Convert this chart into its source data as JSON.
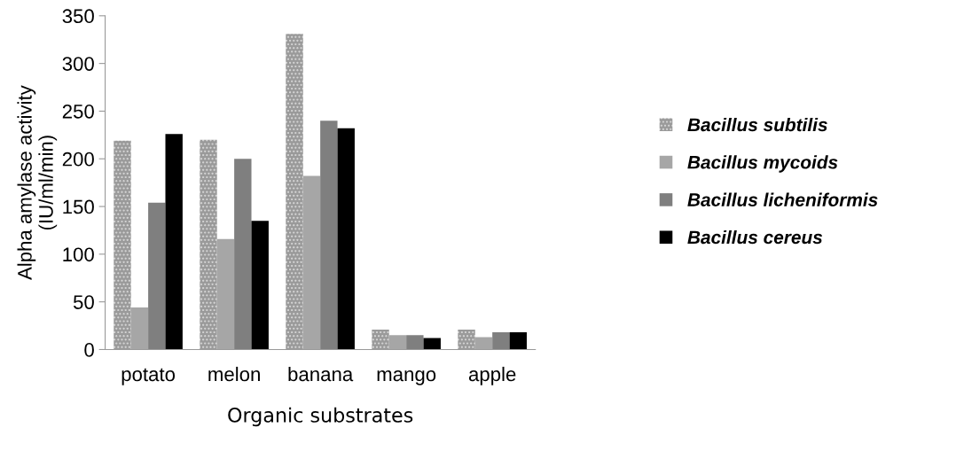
{
  "chart_data": {
    "type": "bar",
    "xlabel": "Organic substrates",
    "ylabel": "Alpha amylase activity\n(IU/ml/min)",
    "categories": [
      "potato",
      "melon",
      "banana",
      "mango",
      "apple"
    ],
    "series": [
      {
        "name": "Bacillus subtilis",
        "color": "#9a9a9a",
        "values": [
          219,
          220,
          331,
          21,
          21
        ]
      },
      {
        "name": "Bacillus mycoids",
        "color": "#a6a6a6",
        "values": [
          44,
          116,
          182,
          15,
          13
        ]
      },
      {
        "name": "Bacillus licheniformis",
        "color": "#7f7f7f",
        "values": [
          154,
          200,
          240,
          15,
          18
        ]
      },
      {
        "name": "Bacillus cereus",
        "color": "#000000",
        "values": [
          226,
          135,
          232,
          12,
          18
        ]
      }
    ],
    "ylim": [
      0,
      350
    ],
    "yticks": [
      0,
      50,
      100,
      150,
      200,
      250,
      300,
      350
    ],
    "grid": false,
    "legend": "right"
  }
}
